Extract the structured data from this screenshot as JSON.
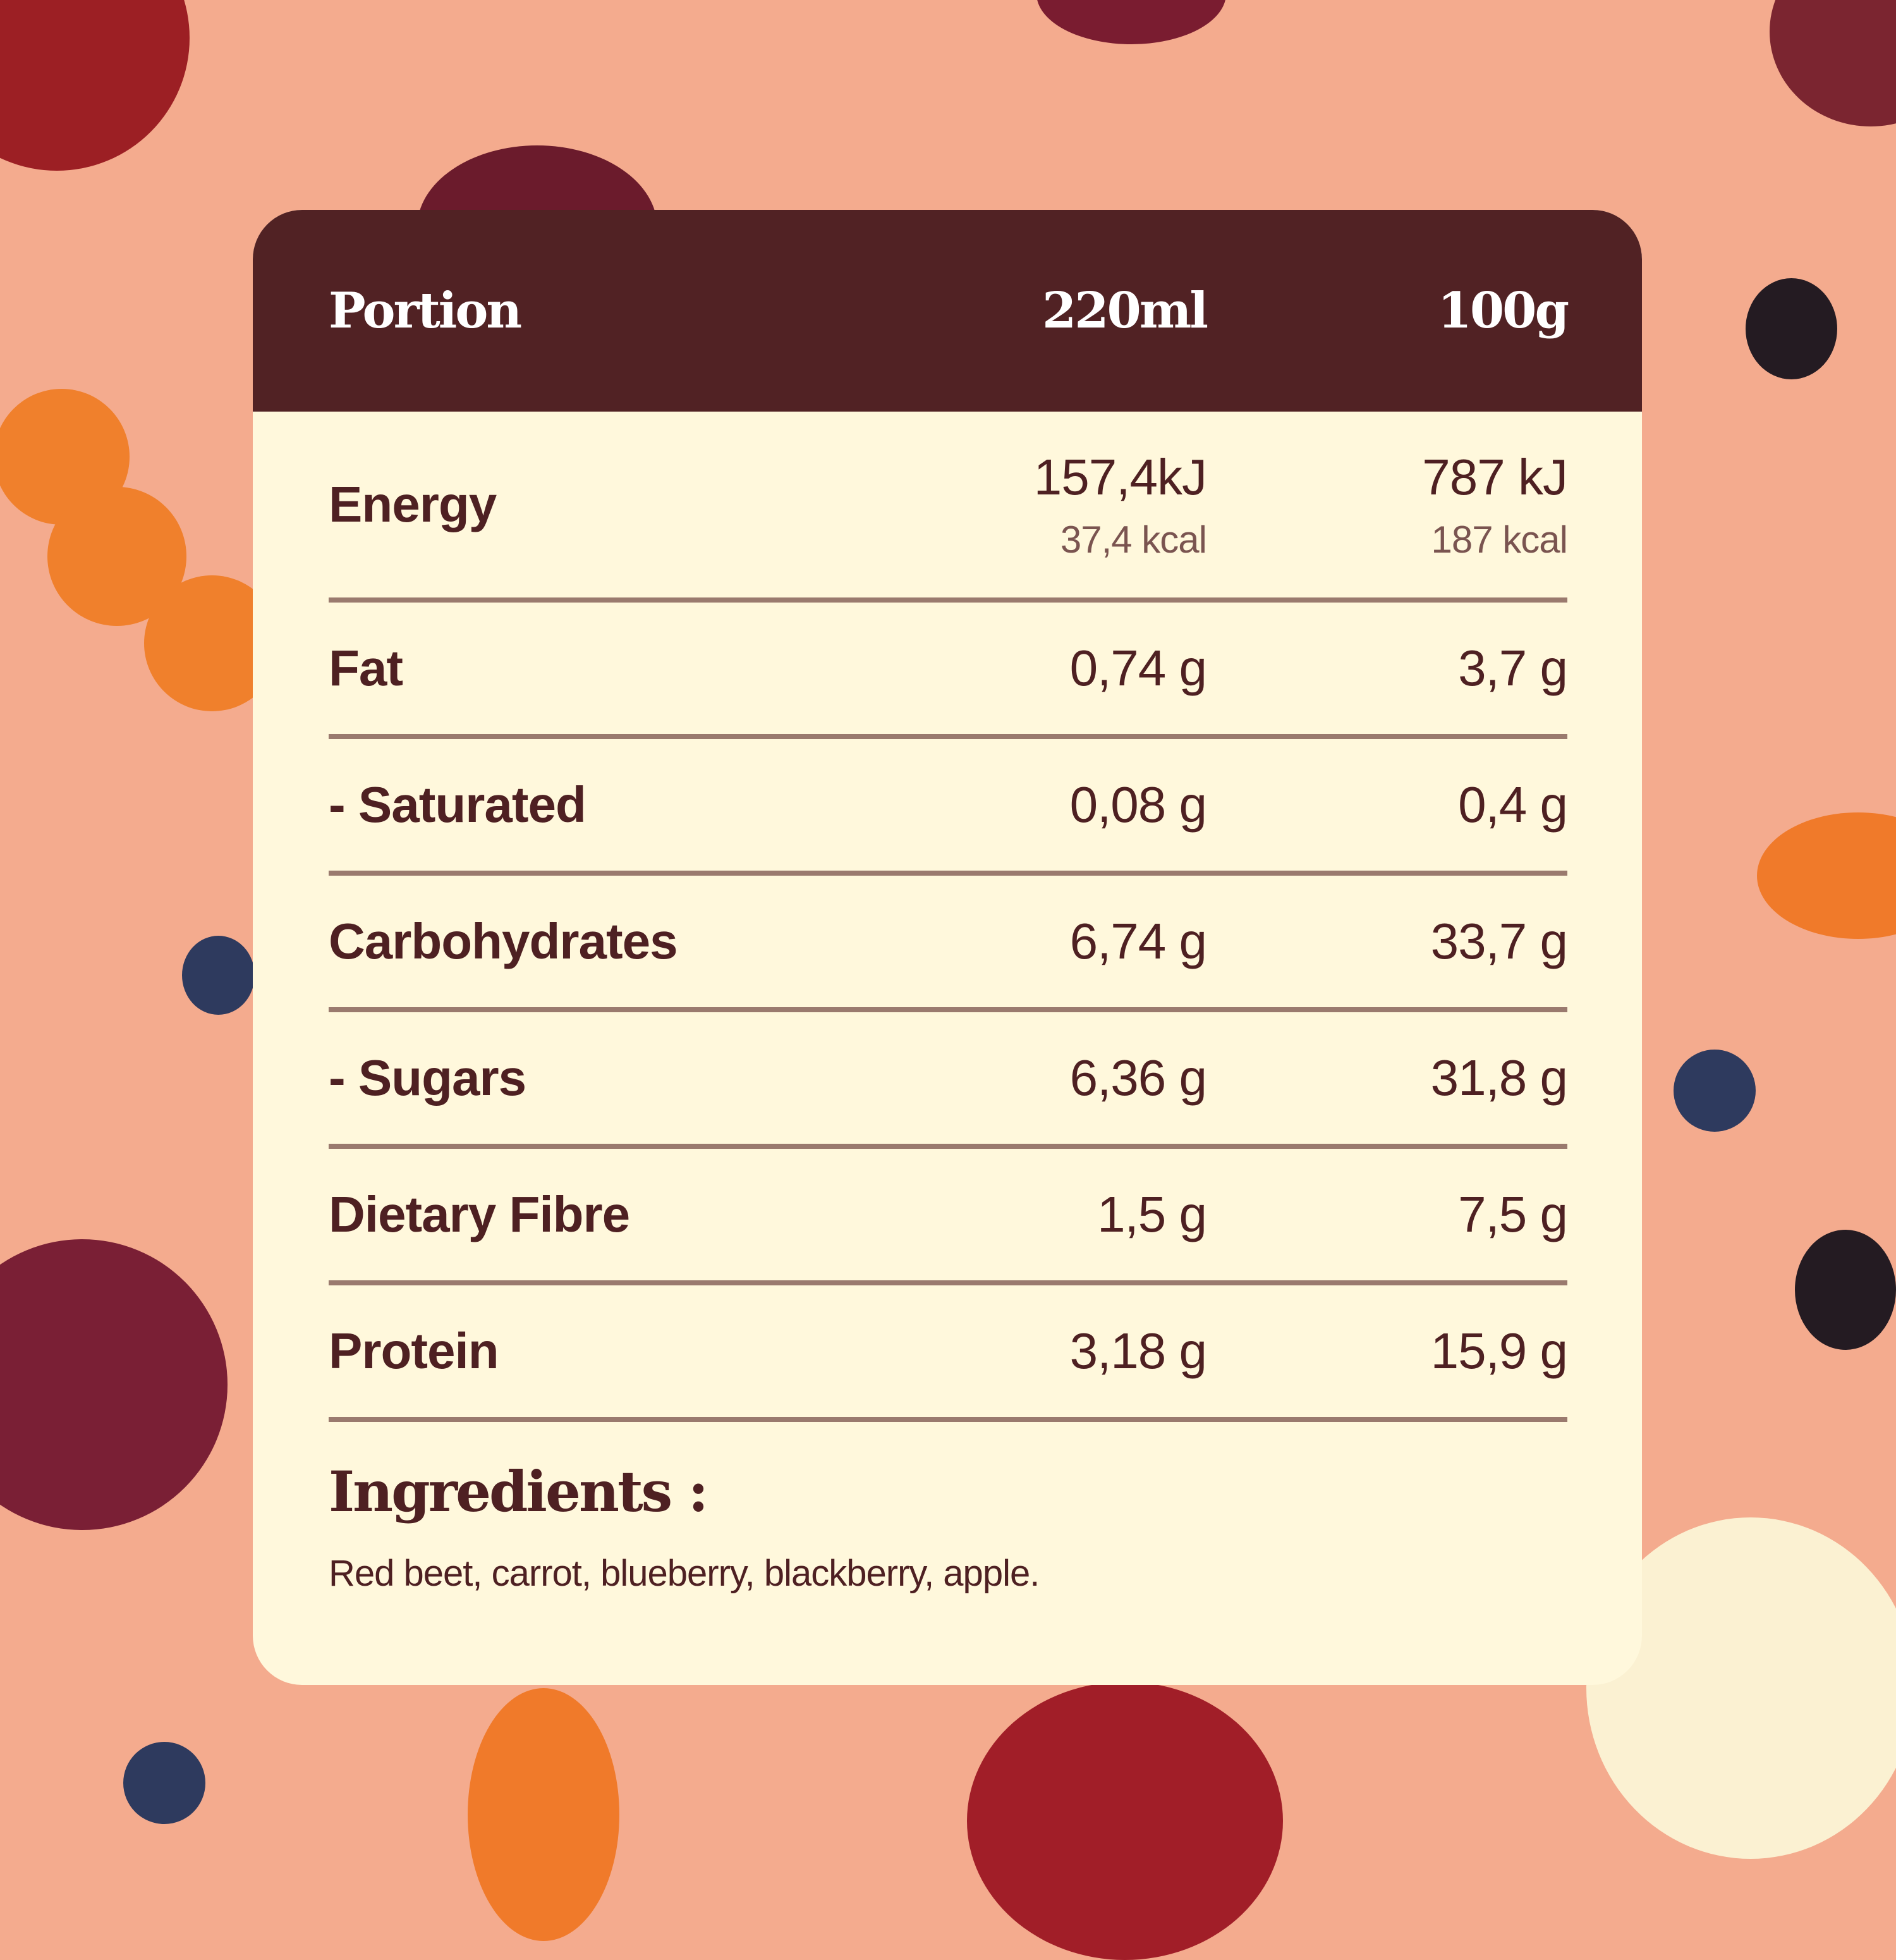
{
  "colors": {
    "background": "#f4ab8e",
    "header": "#512224",
    "card": "#fff8dc",
    "text": "#4e2022",
    "divider": "#9a7a6e"
  },
  "header": {
    "label": "Portion",
    "col1": "220ml",
    "col2": "100g"
  },
  "energy": {
    "label": "Energy",
    "col1_kj": "157,4kJ",
    "col1_kcal": "37,4 kcal",
    "col2_kj": "787 kJ",
    "col2_kcal": "187 kcal"
  },
  "rows": [
    {
      "label": "Fat",
      "col1": "0,74 g",
      "col2": "3,7 g"
    },
    {
      "label": "- Saturated",
      "col1": "0,08 g",
      "col2": "0,4 g"
    },
    {
      "label": "Carbohydrates",
      "col1": "6,74 g",
      "col2": "33,7 g"
    },
    {
      "label": "- Sugars",
      "col1": "6,36 g",
      "col2": "31,8 g"
    },
    {
      "label": "Dietary Fibre",
      "col1": "1,5 g",
      "col2": "7,5 g"
    },
    {
      "label": "Protein",
      "col1": "3,18 g",
      "col2": "15,9 g"
    }
  ],
  "ingredients": {
    "title": "Ingredients :",
    "text": "Red beet, carrot, blueberry, blackberry, apple."
  }
}
